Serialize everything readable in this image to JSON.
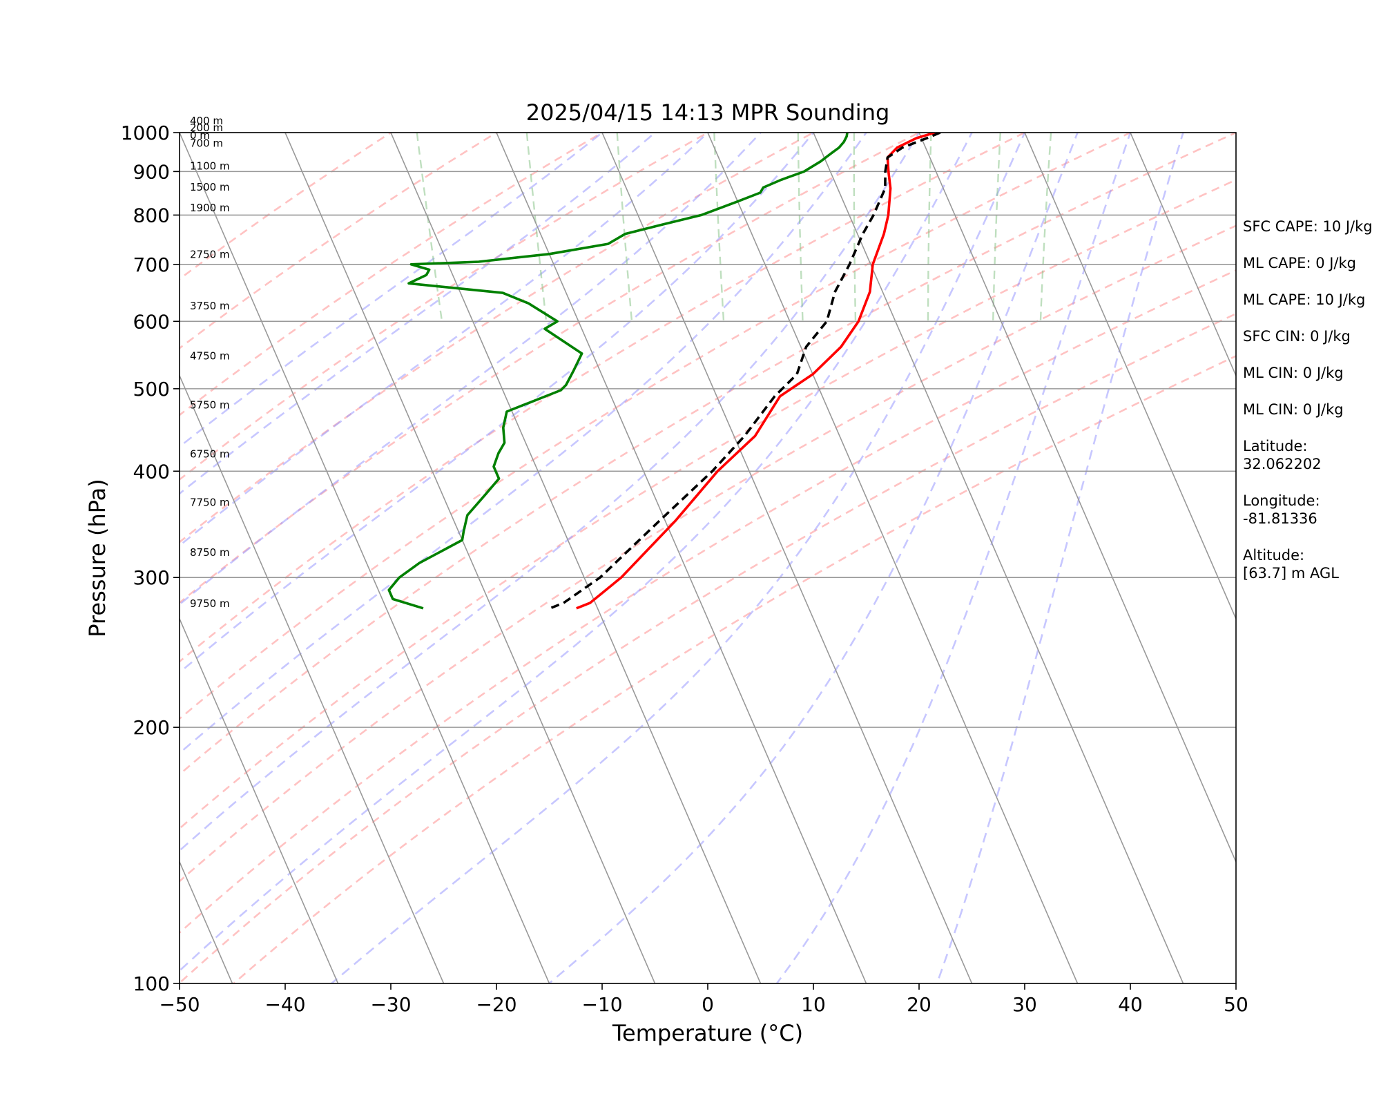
{
  "chart_data": {
    "type": "skew-t log-p",
    "title": "2025/04/15 14:13 MPR Sounding",
    "xlabel": "Temperature (°C)",
    "ylabel": "Pressure (hPa)",
    "xlim": [
      -50,
      50
    ],
    "ylim": [
      1000,
      100
    ],
    "y_scale": "log",
    "x_ticks": [
      "−50",
      "−40",
      "−30",
      "−20",
      "−10",
      "0",
      "10",
      "20",
      "30",
      "40",
      "50"
    ],
    "y_ticks": [
      "100",
      "200",
      "300",
      "400",
      "500",
      "600",
      "700",
      "800",
      "900",
      "1000"
    ],
    "height_labels": [
      "9750 m",
      "8750 m",
      "7750 m",
      "6750 m",
      "5750 m",
      "4750 m",
      "3750 m",
      "2750 m",
      "1900 m",
      "1500 m",
      "1100 m",
      "700 m",
      "400 m",
      "200 m",
      "0 m"
    ],
    "height_label_pressures": [
      277,
      318,
      364,
      415,
      474,
      541,
      620,
      712,
      808,
      855,
      905,
      962,
      1000,
      1000,
      1000
    ],
    "series": [
      {
        "color": "#ff0000",
        "style": "solid",
        "points": [
          [
            1000,
            21.5
          ],
          [
            985,
            19.5
          ],
          [
            960,
            17.3
          ],
          [
            935,
            16.0
          ],
          [
            900,
            15.5
          ],
          [
            860,
            15.0
          ],
          [
            800,
            13.7
          ],
          [
            760,
            12.5
          ],
          [
            700,
            10.2
          ],
          [
            650,
            8.8
          ],
          [
            600,
            6.5
          ],
          [
            560,
            3.8
          ],
          [
            520,
            0.0
          ],
          [
            490,
            -4.0
          ],
          [
            440,
            -8.0
          ],
          [
            400,
            -13.0
          ],
          [
            350,
            -19.0
          ],
          [
            300,
            -26.5
          ],
          [
            280,
            -30.5
          ],
          [
            276,
            -32.0
          ]
        ]
      },
      {
        "color": "#000000",
        "style": "dashed",
        "points": [
          [
            1000,
            22.0
          ],
          [
            985,
            20.5
          ],
          [
            960,
            17.8
          ],
          [
            935,
            16.0
          ],
          [
            900,
            15.2
          ],
          [
            860,
            14.5
          ],
          [
            800,
            12.3
          ],
          [
            760,
            10.5
          ],
          [
            700,
            8.0
          ],
          [
            650,
            5.5
          ],
          [
            600,
            3.5
          ],
          [
            560,
            0.5
          ],
          [
            520,
            -1.5
          ],
          [
            490,
            -4.5
          ],
          [
            440,
            -9.0
          ],
          [
            400,
            -13.5
          ],
          [
            350,
            -20.5
          ],
          [
            300,
            -28.5
          ],
          [
            280,
            -33.0
          ],
          [
            276,
            -34.5
          ]
        ]
      },
      {
        "color": "#008000",
        "style": "solid",
        "points": [
          [
            1000,
            13.2
          ],
          [
            990,
            13.0
          ],
          [
            975,
            12.5
          ],
          [
            960,
            11.8
          ],
          [
            945,
            10.8
          ],
          [
            925,
            9.5
          ],
          [
            900,
            7.5
          ],
          [
            880,
            5.0
          ],
          [
            862,
            3.0
          ],
          [
            850,
            2.5
          ],
          [
            830,
            0.0
          ],
          [
            800,
            -4.0
          ],
          [
            780,
            -8.0
          ],
          [
            760,
            -12.0
          ],
          [
            740,
            -14.0
          ],
          [
            720,
            -20.0
          ],
          [
            705,
            -27.0
          ],
          [
            700,
            -33.5
          ],
          [
            690,
            -32.0
          ],
          [
            680,
            -32.5
          ],
          [
            665,
            -34.5
          ],
          [
            648,
            -26.0
          ],
          [
            630,
            -24.0
          ],
          [
            600,
            -22.0
          ],
          [
            588,
            -23.5
          ],
          [
            550,
            -21.0
          ],
          [
            525,
            -22.5
          ],
          [
            505,
            -23.8
          ],
          [
            498,
            -24.5
          ],
          [
            470,
            -30.5
          ],
          [
            450,
            -31.5
          ],
          [
            432,
            -32.0
          ],
          [
            420,
            -33.0
          ],
          [
            405,
            -34.0
          ],
          [
            392,
            -34.0
          ],
          [
            375,
            -36.0
          ],
          [
            355,
            -38.5
          ],
          [
            340,
            -39.5
          ],
          [
            332,
            -40.0
          ],
          [
            312,
            -45.0
          ],
          [
            300,
            -47.5
          ],
          [
            290,
            -49.0
          ],
          [
            283,
            -49.0
          ],
          [
            276,
            -46.5
          ]
        ]
      }
    ],
    "background_lines": {
      "isobars": [
        100,
        200,
        300,
        400,
        500,
        600,
        700,
        800,
        900,
        1000
      ],
      "isotherms_c": [
        -160,
        -150,
        -140,
        -130,
        -120,
        -110,
        -100,
        -90,
        -80,
        -70,
        -60,
        -50,
        -40,
        -30,
        -20,
        -10,
        0,
        10,
        20,
        30,
        40,
        50
      ],
      "dry_adiabats_c": [
        -30,
        -20,
        -10,
        0,
        10,
        20,
        30,
        40,
        50,
        60,
        70,
        80,
        90,
        100
      ],
      "moist_adiabats_c": [
        -10,
        -5,
        0,
        5,
        10,
        15,
        20,
        25,
        30,
        35,
        40,
        45
      ],
      "mixing_ratios_gkg": [
        0.4,
        1,
        2,
        4,
        7,
        10,
        16,
        24,
        32
      ]
    }
  },
  "info": {
    "sfc_cape": "SFC CAPE: 10 J/kg",
    "ml_cape_1": "ML CAPE: 0 J/kg",
    "ml_cape_2": "ML CAPE: 10 J/kg",
    "sfc_cin": "SFC CIN: 0 J/kg",
    "ml_cin_1": "ML CIN: 0 J/kg",
    "ml_cin_2": "ML CIN: 0 J/kg",
    "latitude_label": "Latitude:",
    "latitude_value": "32.062202",
    "longitude_label": "Longitude:",
    "longitude_value": "-81.81336",
    "altitude_label": "Altitude:",
    "altitude_value": "[63.7] m AGL"
  }
}
